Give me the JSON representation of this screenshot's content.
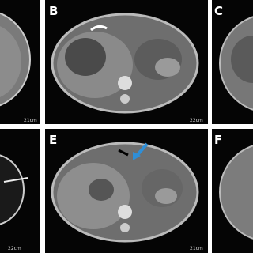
{
  "panels": [
    {
      "scale": "21cm"
    },
    {
      "label": "B",
      "scale": "22cm"
    },
    {
      "label": "C"
    },
    {
      "scale": "22cm"
    },
    {
      "label": "E",
      "scale": "21cm"
    },
    {
      "label": "F"
    }
  ]
}
